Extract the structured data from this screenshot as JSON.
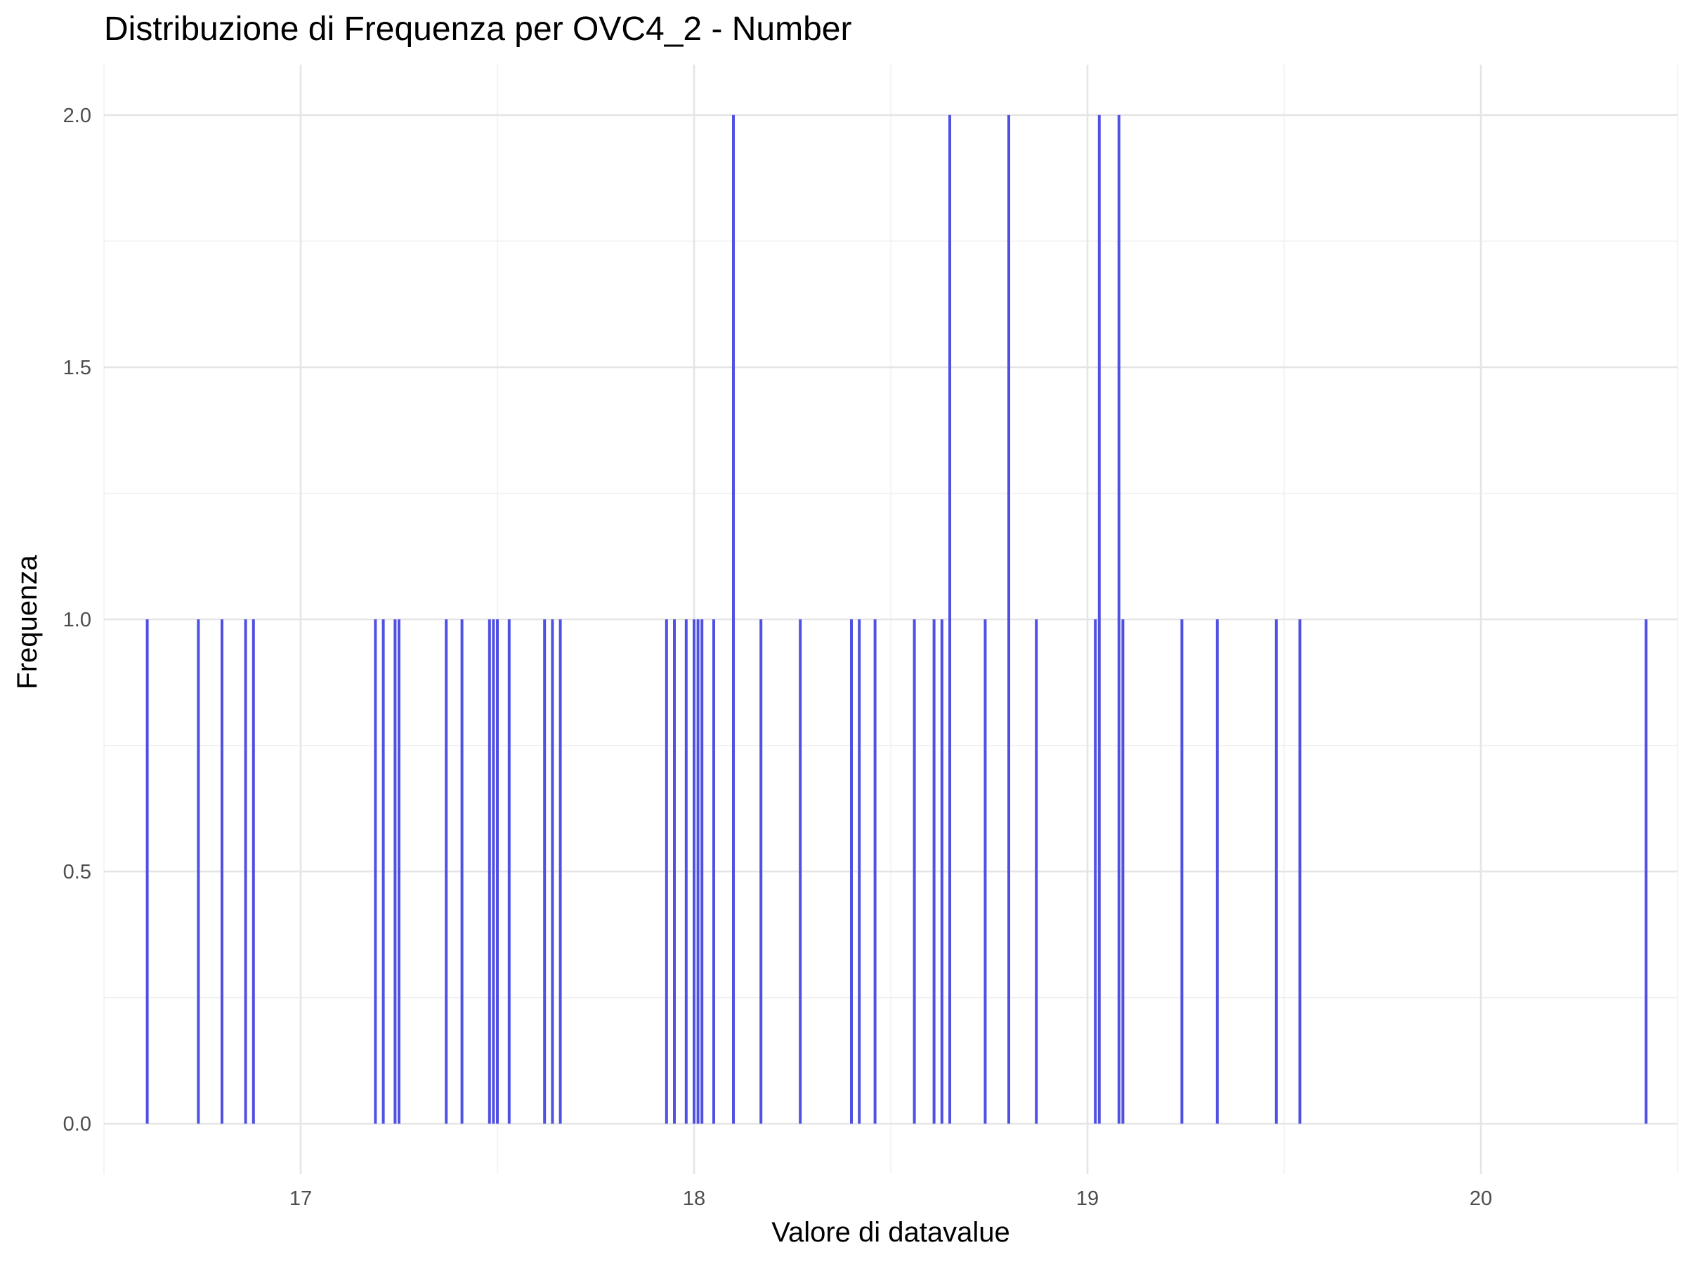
{
  "chart_data": {
    "type": "bar",
    "title": "Distribuzione di Frequenza per OVC4_2 - Number",
    "xlabel": "Valore di datavalue",
    "ylabel": "Frequenza",
    "xlim": [
      16.5,
      20.5
    ],
    "ylim": [
      -0.1,
      2.1
    ],
    "x_ticks": [
      17,
      18,
      19,
      20
    ],
    "x_tick_labels": [
      "17",
      "18",
      "19",
      "20"
    ],
    "y_ticks": [
      0,
      0.5,
      1,
      1.5,
      2
    ],
    "y_tick_labels": [
      "0.0",
      "0.5",
      "1.0",
      "1.5",
      "2.0"
    ],
    "grid": true,
    "bar_color": "#5050e3",
    "x": [
      16.61,
      16.74,
      16.8,
      16.86,
      16.88,
      17.19,
      17.21,
      17.24,
      17.25,
      17.37,
      17.41,
      17.48,
      17.49,
      17.5,
      17.53,
      17.62,
      17.64,
      17.66,
      17.93,
      17.95,
      17.98,
      18.0,
      18.01,
      18.02,
      18.05,
      18.1,
      18.17,
      18.27,
      18.4,
      18.42,
      18.46,
      18.56,
      18.61,
      18.63,
      18.65,
      18.74,
      18.8,
      18.87,
      19.02,
      19.03,
      19.08,
      19.09,
      19.24,
      19.33,
      19.48,
      19.54,
      20.42
    ],
    "values": [
      1,
      1,
      1,
      1,
      1,
      1,
      1,
      1,
      1,
      1,
      1,
      1,
      1,
      1,
      1,
      1,
      1,
      1,
      1,
      1,
      1,
      1,
      1,
      1,
      1,
      2,
      1,
      1,
      1,
      1,
      1,
      1,
      1,
      1,
      2,
      1,
      2,
      1,
      1,
      2,
      2,
      1,
      1,
      1,
      1,
      1,
      1
    ]
  }
}
